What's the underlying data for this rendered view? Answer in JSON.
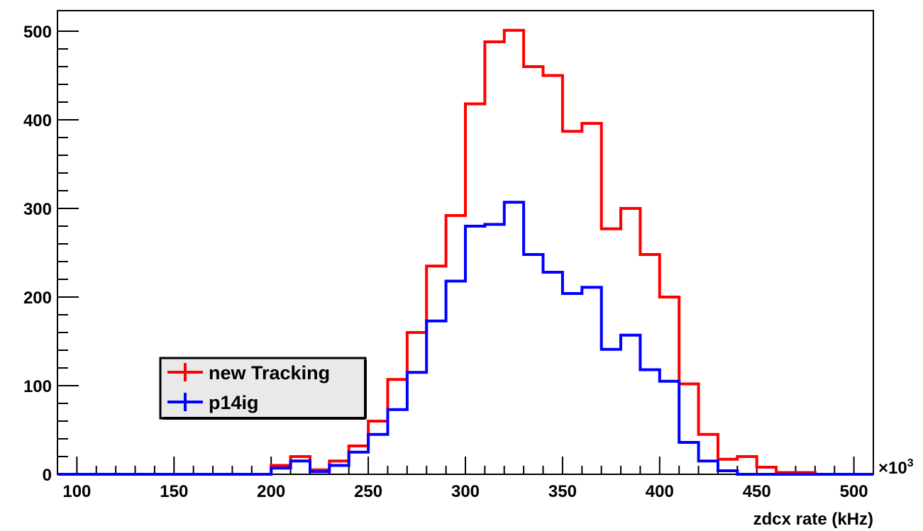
{
  "chart_data": {
    "type": "step-histogram",
    "xlabel": "zdcx rate (kHz)",
    "ylabel": "",
    "x_multiplier": "×10",
    "x_multiplier_exp": "3",
    "xlim": [
      90,
      510
    ],
    "ylim": [
      0,
      500
    ],
    "x_ticks": [
      "100",
      "150",
      "200",
      "250",
      "300",
      "350",
      "400",
      "450",
      "500"
    ],
    "y_ticks": [
      "0",
      "100",
      "200",
      "300",
      "400",
      "500"
    ],
    "grid": false,
    "legend_position": "bottom-left",
    "bin_edges": [
      90,
      100,
      110,
      120,
      130,
      140,
      150,
      160,
      170,
      180,
      190,
      200,
      210,
      220,
      230,
      240,
      250,
      260,
      270,
      280,
      290,
      300,
      310,
      320,
      330,
      340,
      350,
      360,
      370,
      380,
      390,
      400,
      410,
      420,
      430,
      440,
      450,
      460,
      470,
      480,
      490,
      500,
      510
    ],
    "series": [
      {
        "name": "new Tracking",
        "color": "#ff0000",
        "values": [
          0,
          0,
          0,
          0,
          0,
          0,
          0,
          0,
          0,
          0,
          0,
          10,
          20,
          5,
          15,
          32,
          60,
          107,
          160,
          235,
          292,
          418,
          488,
          501,
          460,
          450,
          387,
          396,
          277,
          300,
          248,
          200,
          102,
          45,
          17,
          20,
          8,
          2,
          2,
          0,
          0,
          0
        ]
      },
      {
        "name": "p14ig",
        "color": "#0000ff",
        "values": [
          0,
          0,
          0,
          0,
          0,
          0,
          0,
          0,
          0,
          0,
          0,
          7,
          15,
          3,
          10,
          25,
          45,
          73,
          115,
          173,
          218,
          280,
          282,
          307,
          248,
          228,
          204,
          211,
          141,
          157,
          118,
          105,
          36,
          15,
          4,
          0,
          0,
          0,
          0,
          0,
          0,
          0
        ]
      }
    ]
  }
}
